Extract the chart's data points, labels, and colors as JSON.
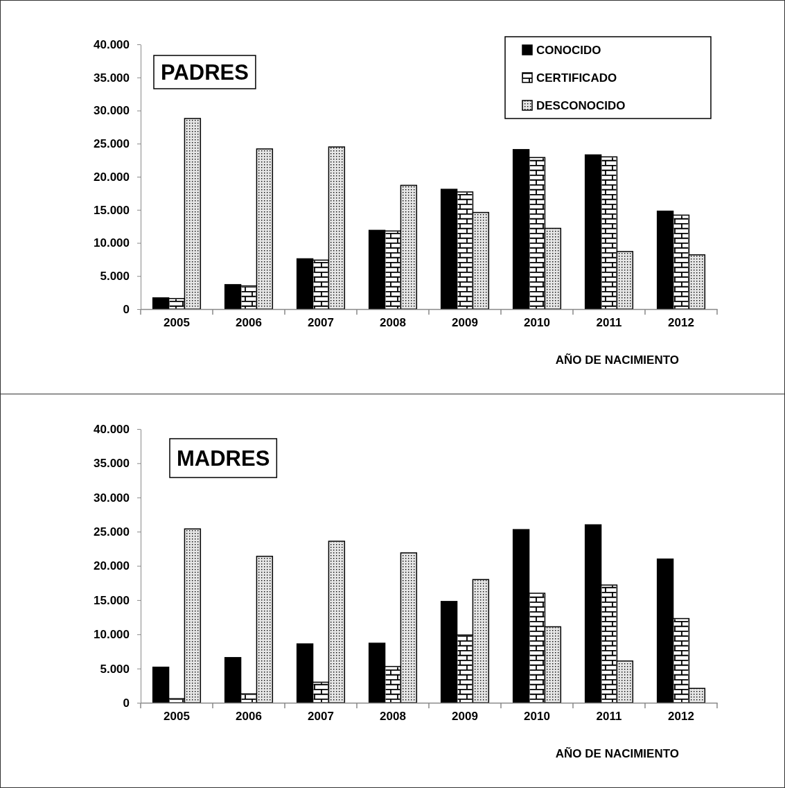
{
  "chart_data": [
    {
      "type": "bar",
      "title": "PADRES",
      "xlabel": "AÑO DE NACIMIENTO",
      "categories": [
        "2005",
        "2006",
        "2007",
        "2008",
        "2009",
        "2010",
        "2011",
        "2012"
      ],
      "series": [
        {
          "name": "CONOCIDO",
          "color": "#000000",
          "values": [
            1700,
            3700,
            7600,
            11900,
            18100,
            24100,
            23300,
            14800
          ]
        },
        {
          "name": "CERTIFICADO",
          "color": "#ffffff",
          "values": [
            1600,
            3500,
            7400,
            11800,
            17700,
            22900,
            23000,
            14200
          ]
        },
        {
          "name": "DESCONOCIDO",
          "color": "#e6e6e6",
          "values": [
            28800,
            24200,
            24500,
            18700,
            14600,
            12200,
            8700,
            8200
          ]
        }
      ],
      "ylim": [
        0,
        40000
      ],
      "yticks": [
        0,
        {
          "value": 5000,
          "label": "5.000"
        },
        {
          "value": 10000,
          "label": "10.000"
        },
        {
          "value": 15000,
          "label": "15.000"
        },
        {
          "value": 20000,
          "label": "20.000"
        },
        {
          "value": 25000,
          "label": "25.000"
        },
        {
          "value": 30000,
          "label": "30.000"
        },
        {
          "value": 35000,
          "label": "35.000"
        },
        {
          "value": 40000,
          "label": "40.000"
        }
      ],
      "grid": false,
      "legend": "top right"
    },
    {
      "type": "bar",
      "title": "MADRES",
      "xlabel": "AÑO DE NACIMIENTO",
      "categories": [
        "2005",
        "2006",
        "2007",
        "2008",
        "2009",
        "2010",
        "2011",
        "2012"
      ],
      "series": [
        {
          "color": "#000000",
          "values": [
            5200,
            6600,
            8600,
            8700,
            14800,
            25300,
            26000,
            21000
          ]
        },
        {
          "color": "#ffffff",
          "values": [
            600,
            1300,
            3000,
            5300,
            9900,
            16000,
            17200,
            12300
          ]
        },
        {
          "color": "#e6e6e6",
          "values": [
            25400,
            21400,
            23600,
            21900,
            18000,
            11100,
            6100,
            2100
          ]
        }
      ],
      "ylim": [
        0,
        40000
      ],
      "yticks": [
        0,
        {
          "value": 5000,
          "label": "5.000"
        },
        {
          "value": 10000,
          "label": "10.000"
        },
        {
          "value": 15000,
          "label": "15.000"
        },
        {
          "value": 20000,
          "label": "20.000"
        },
        {
          "value": 25000,
          "label": "25.000"
        },
        {
          "value": 30000,
          "label": "30.000"
        },
        {
          "value": 35000,
          "label": "35.000"
        },
        {
          "value": 40000,
          "label": "40.000"
        }
      ],
      "grid": false,
      "legend": false
    }
  ]
}
